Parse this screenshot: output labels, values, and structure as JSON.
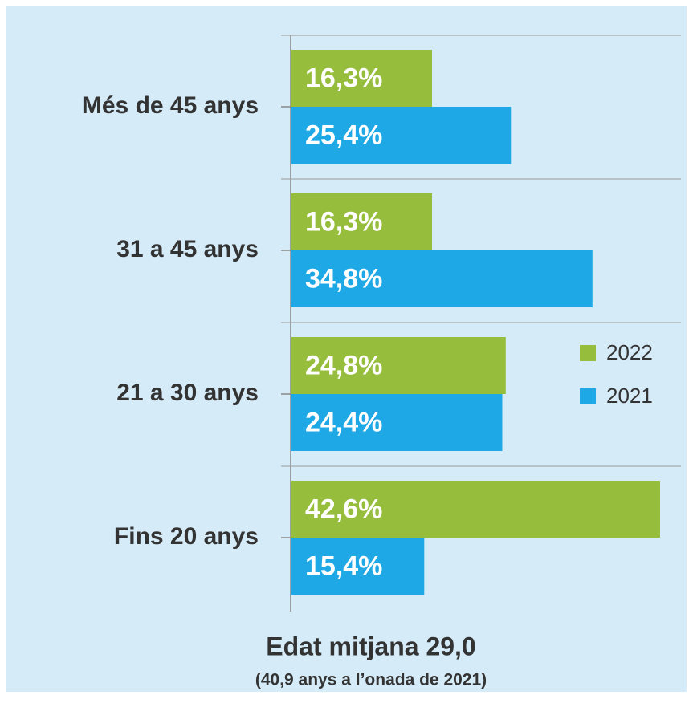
{
  "chart_data": {
    "type": "hbar",
    "title": "Edat mitjana 29,0",
    "subtitle": "(40,9 anys a l’onada de 2021)",
    "categories": [
      "Més de 45 anys",
      "31 a 45 anys",
      "21 a 30 anys",
      "Fins 20 anys"
    ],
    "series": [
      {
        "name": "2022",
        "color": "#96be3c",
        "values": [
          16.3,
          16.3,
          24.8,
          42.6
        ],
        "value_labels": [
          "16,3%",
          "16,3%",
          "24,8%",
          "42,6%"
        ]
      },
      {
        "name": "2021",
        "color": "#1ea8e6",
        "values": [
          25.4,
          34.8,
          24.4,
          15.4
        ],
        "value_labels": [
          "25,4%",
          "34,8%",
          "24,4%",
          "15,4%"
        ]
      }
    ],
    "legend": "right"
  }
}
